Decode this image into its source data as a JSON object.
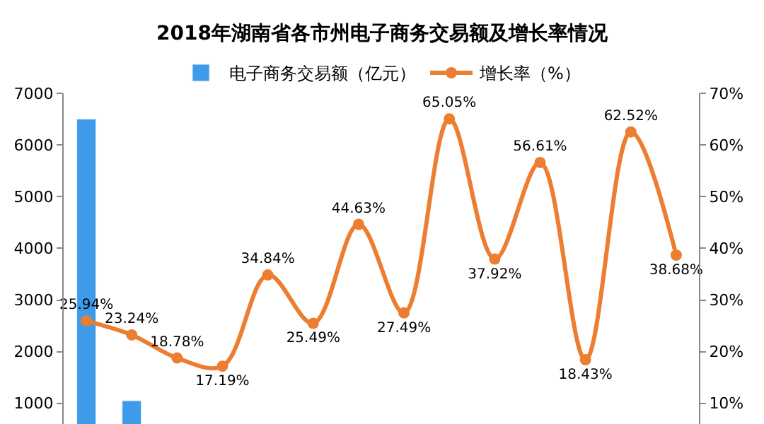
{
  "chart_data": {
    "type": "bar",
    "title": "2018年湖南省各市州电子商务交易额及增长率情况",
    "categories": [
      null,
      null,
      null,
      null,
      null,
      null,
      null,
      null,
      null,
      null,
      null,
      null,
      null,
      null
    ],
    "series": [
      {
        "name": "电子商务交易额（亿元）",
        "color": "#3d9be9",
        "values": [
          6500,
          1050,
          null,
          null,
          null,
          null,
          null,
          null,
          null,
          null,
          null,
          null,
          null,
          null
        ]
      },
      {
        "name": "增长率（%）",
        "type": "line",
        "axis": "y2",
        "color": "#ed7d31",
        "marker": "circle",
        "values": [
          25.94,
          23.24,
          18.78,
          17.19,
          34.84,
          25.49,
          44.63,
          27.49,
          65.05,
          37.92,
          56.61,
          18.43,
          62.52,
          38.68
        ],
        "value_labels": [
          "25.94%",
          "23.24%",
          "18.78%",
          "17.19%",
          "34.84%",
          "25.49%",
          "44.63%",
          "27.49%",
          "65.05%",
          "37.92%",
          "56.61%",
          "18.43%",
          "62.52%",
          "38.68%"
        ]
      }
    ],
    "ylim": [
      600,
      7000
    ],
    "yticks": [
      1000,
      2000,
      3000,
      4000,
      5000,
      6000,
      7000
    ],
    "y2lim": [
      6,
      70
    ],
    "y2ticks": [
      {
        "value": 10,
        "label": "10%"
      },
      {
        "value": 20,
        "label": "20%"
      },
      {
        "value": 30,
        "label": "30%"
      },
      {
        "value": 40,
        "label": "40%"
      },
      {
        "value": 50,
        "label": "50%"
      },
      {
        "value": 60,
        "label": "60%"
      },
      {
        "value": 70,
        "label": "70%"
      }
    ],
    "legend": "top"
  }
}
